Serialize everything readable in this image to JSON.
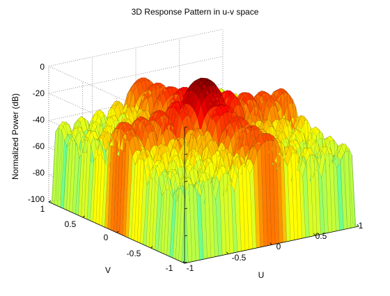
{
  "chart_data": {
    "type": "surface",
    "title": "3D Response Pattern in u-v space",
    "xlabel": "U",
    "ylabel": "V",
    "zlabel": "Normalized Power (dB)",
    "xlim": [
      -1,
      1
    ],
    "ylim": [
      -1,
      1
    ],
    "zlim": [
      -100,
      0
    ],
    "xticks": [
      "-1",
      "-0.5",
      "0",
      "0.5",
      "1"
    ],
    "yticks": [
      "-1",
      "-0.5",
      "0",
      "0.5",
      "1"
    ],
    "zticks": [
      "0",
      "-20",
      "-40",
      "-60",
      "-80",
      "-100"
    ],
    "colormap": "jet",
    "grid": true,
    "peak": {
      "u": 0,
      "v": 0,
      "value": 0
    },
    "principal_cut_sidelobe_level": -30,
    "far_sidelobe_level": -60,
    "floor": -100
  }
}
